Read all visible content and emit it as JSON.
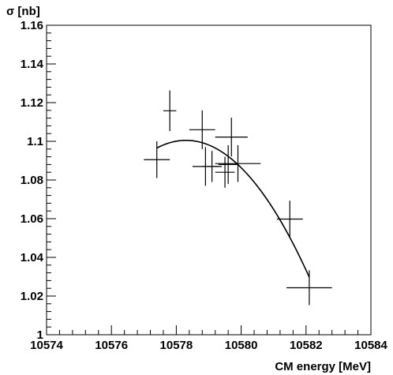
{
  "chart_data": {
    "type": "scatter",
    "title": "",
    "xlabel": "CM energy [MeV]",
    "ylabel": "σ [nb]",
    "xlim": [
      10574,
      10584
    ],
    "ylim": [
      1.0,
      1.16
    ],
    "xticks": [
      "10574",
      "10576",
      "10578",
      "10580",
      "10582",
      "10584"
    ],
    "yticks": [
      "1",
      "1.02",
      "1.04",
      "1.06",
      "1.08",
      "1.1",
      "1.12",
      "1.14",
      "1.16"
    ],
    "grid": false,
    "legend": "none",
    "colors": {
      "marks": "#000000",
      "background": "#ffffff"
    },
    "points": [
      {
        "x": 10577.4,
        "y": 1.0905,
        "xerr": 0.4,
        "yerr": 0.0095
      },
      {
        "x": 10577.8,
        "y": 1.1158,
        "xerr": 0.2,
        "yerr": 0.0105
      },
      {
        "x": 10578.8,
        "y": 1.106,
        "xerr": 0.4,
        "yerr": 0.01
      },
      {
        "x": 10578.9,
        "y": 1.087,
        "xerr": 0.4,
        "yerr": 0.01
      },
      {
        "x": 10579.1,
        "y": 1.087,
        "xerr": 0.3,
        "yerr": 0.008
      },
      {
        "x": 10579.5,
        "y": 1.084,
        "xerr": 0.3,
        "yerr": 0.008
      },
      {
        "x": 10579.6,
        "y": 1.088,
        "xerr": 0.3,
        "yerr": 0.01
      },
      {
        "x": 10579.7,
        "y": 1.1022,
        "xerr": 0.5,
        "yerr": 0.01
      },
      {
        "x": 10579.9,
        "y": 1.0885,
        "xerr": 0.7,
        "yerr": 0.0095
      },
      {
        "x": 10581.5,
        "y": 1.0598,
        "xerr": 0.4,
        "yerr": 0.0095
      },
      {
        "x": 10582.1,
        "y": 1.0243,
        "xerr": 0.7,
        "yerr": 0.009
      }
    ],
    "fit": {
      "type": "quadratic",
      "x_range": [
        10577.4,
        10582.1
      ],
      "vertex_x": 10578.3,
      "vertex_y": 1.1005,
      "curvature": -0.0049
    }
  }
}
